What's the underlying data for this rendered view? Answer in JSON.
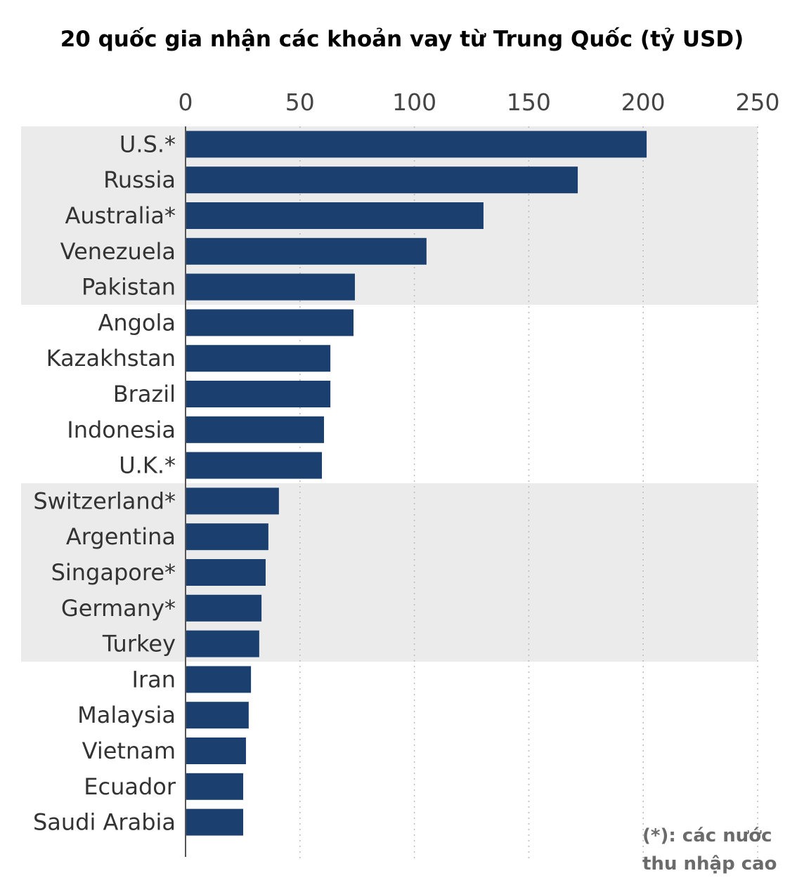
{
  "chart_data": {
    "type": "bar",
    "orientation": "horizontal",
    "title": "20 quốc gia nhận các khoản vay từ Trung Quốc (tỷ USD)",
    "xlabel": "",
    "ylabel": "",
    "xlim": [
      0,
      250
    ],
    "xticks": [
      0,
      50,
      100,
      150,
      200,
      250
    ],
    "grid": "vertical dotted",
    "categories": [
      "U.S.*",
      "Russia",
      "Australia*",
      "Venezuela",
      "Pakistan",
      "Angola",
      "Kazakhstan",
      "Brazil",
      "Indonesia",
      "U.K.*",
      "Switzerland*",
      "Argentina",
      "Singapore*",
      "Germany*",
      "Turkey",
      "Iran",
      "Malaysia",
      "Vietnam",
      "Ecuador",
      "Saudi Arabia"
    ],
    "values": [
      201.5,
      171.4,
      130.2,
      105.3,
      74.0,
      73.4,
      63.3,
      63.3,
      60.5,
      59.6,
      40.8,
      36.2,
      35.0,
      33.2,
      32.2,
      28.6,
      27.6,
      26.4,
      25.2,
      25.2
    ],
    "shaded_row_groups": [
      [
        0,
        4
      ],
      [
        10,
        14
      ]
    ],
    "bar_color": "#1b3f6e",
    "band_color": "#ebebeb",
    "footnote": [
      "(*): các nước",
      "thu nhập cao"
    ]
  }
}
